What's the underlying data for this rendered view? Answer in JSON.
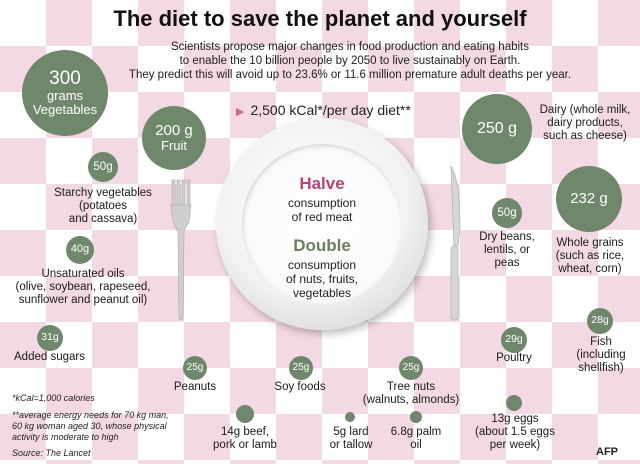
{
  "title": "The diet to save the planet and yourself",
  "intro": [
    "Scientists propose major changes in food production and eating habits",
    "to enable the 10 billion people by 2050 to live sustainably on Earth.",
    "They predict this will avoid up to 23.6% or 11.6 million premature adult deaths per year."
  ],
  "kcal_line": "2,500 kCal*/per day diet**",
  "plate": {
    "halve_word": "Halve",
    "halve_text": [
      "consumption",
      "of red meat"
    ],
    "double_word": "Double",
    "double_text": [
      "consumption",
      "of nuts, fruits,",
      "vegetables"
    ]
  },
  "items": {
    "vegetables": {
      "amount": "300",
      "unit": "grams",
      "name": "Vegetables"
    },
    "fruit": {
      "amount": "200 g",
      "name": "Fruit"
    },
    "dairy": {
      "amount": "250 g",
      "label": [
        "Dairy (whole milk,",
        "dairy products,",
        "such as cheese)"
      ]
    },
    "starchy": {
      "amount": "50g",
      "label": [
        "Starchy vegetables",
        "(potatoes",
        "and cassava)"
      ]
    },
    "oils": {
      "amount": "40g",
      "label": [
        "Unsaturated oils",
        "(olive, soybean, rapeseed,",
        "sunflower and peanut oil)"
      ]
    },
    "sugars": {
      "amount": "31g",
      "label": "Added sugars"
    },
    "beans": {
      "amount": "50g",
      "label": [
        "Dry beans,",
        "lentils, or",
        "peas"
      ]
    },
    "grains": {
      "amount": "232 g",
      "label": [
        "Whole grains",
        "(such as rice,",
        "wheat, corn)"
      ]
    },
    "fish": {
      "amount": "28g",
      "label": [
        "Fish",
        "(including",
        "shellfish)"
      ]
    },
    "poultry": {
      "amount": "29g",
      "label": "Poultry"
    },
    "peanuts": {
      "amount": "25g",
      "label": "Peanuts"
    },
    "soy": {
      "amount": "25g",
      "label": "Soy foods"
    },
    "treenuts": {
      "amount": "25g",
      "label": [
        "Tree nuts",
        "(walnuts, almonds)"
      ]
    },
    "beef": {
      "label": [
        "14g beef,",
        "pork or lamb"
      ]
    },
    "lard": {
      "label": [
        "5g lard",
        "or tallow"
      ]
    },
    "palm": {
      "label": [
        "6.8g palm",
        "oil"
      ]
    },
    "eggs": {
      "label": [
        "13g eggs",
        "(about 1.5 eggs",
        "per week)"
      ]
    }
  },
  "footnotes": {
    "kcal": "*kCal=1,000 calories",
    "energy": [
      "**average energy needs for 70 kg man,",
      "60 kg woman aged 30, whose physical",
      "activity is moderate to high"
    ],
    "source": "Source: The Lancet"
  },
  "credit": "AFP",
  "colors": {
    "circle": "#6f876b",
    "pink": "#f3d9e4",
    "halve": "#b8437a",
    "double": "#6a7f5f"
  }
}
